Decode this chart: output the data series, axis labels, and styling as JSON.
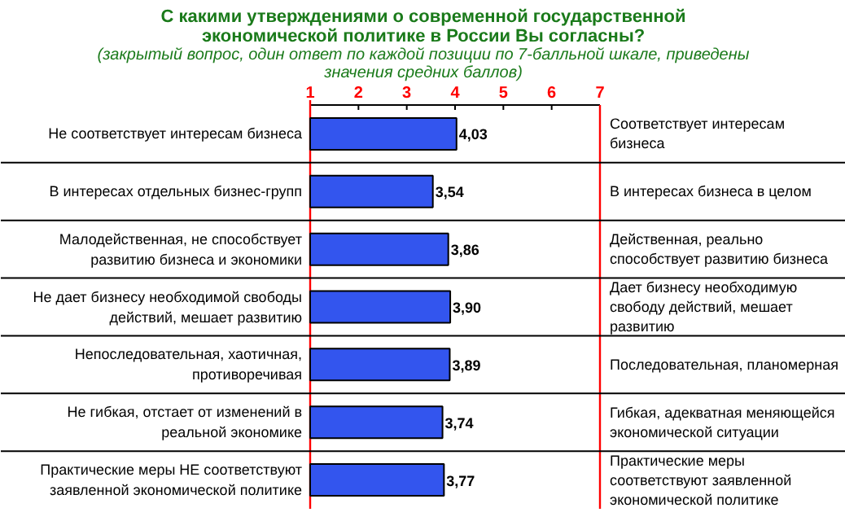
{
  "chart_data": {
    "type": "bar",
    "orientation": "horizontal",
    "title": "С какими утверждениями о современной государственной экономической политике в России Вы согласны?",
    "subtitle": "(закрытый вопрос, один ответ по каждой позиции по 7-балльной шкале, приведены значения средних баллов)",
    "categories": [
      "Не соответствует интересам бизнеса",
      "В интересах отдельных бизнес-групп",
      "Малодейственная, не способствует развитию бизнеса и экономики",
      "Не дает бизнесу необходимой свободы действий, мешает развитию",
      "Непоследовательная, хаотичная, противоречивая",
      "Не гибкая, отстает от изменений в реальной экономике",
      "Практические меры НЕ соответствуют заявленной экономической политике"
    ],
    "values": [
      4.03,
      3.54,
      3.86,
      3.9,
      3.89,
      3.74,
      3.77
    ],
    "value_labels": [
      "4,03",
      "3,54",
      "3,86",
      "3,90",
      "3,89",
      "3,74",
      "3,77"
    ],
    "color": "#3355ee",
    "xlim": [
      1,
      7
    ],
    "xticks": [
      1,
      2,
      3,
      4,
      5,
      6,
      7
    ],
    "annotations": [
      "Соответствует интересам бизнеса",
      "В интересах бизнеса в целом",
      "Действенная, реально способствует развитию бизнеса",
      "Дает бизнесу необходимую свободу действий, мешает развитию",
      "Последовательная, планомерная",
      "Гибкая, адекватная меняющейся экономической ситуации",
      "Практические меры соответствуют заявленной экономической политике"
    ],
    "grid": false
  }
}
